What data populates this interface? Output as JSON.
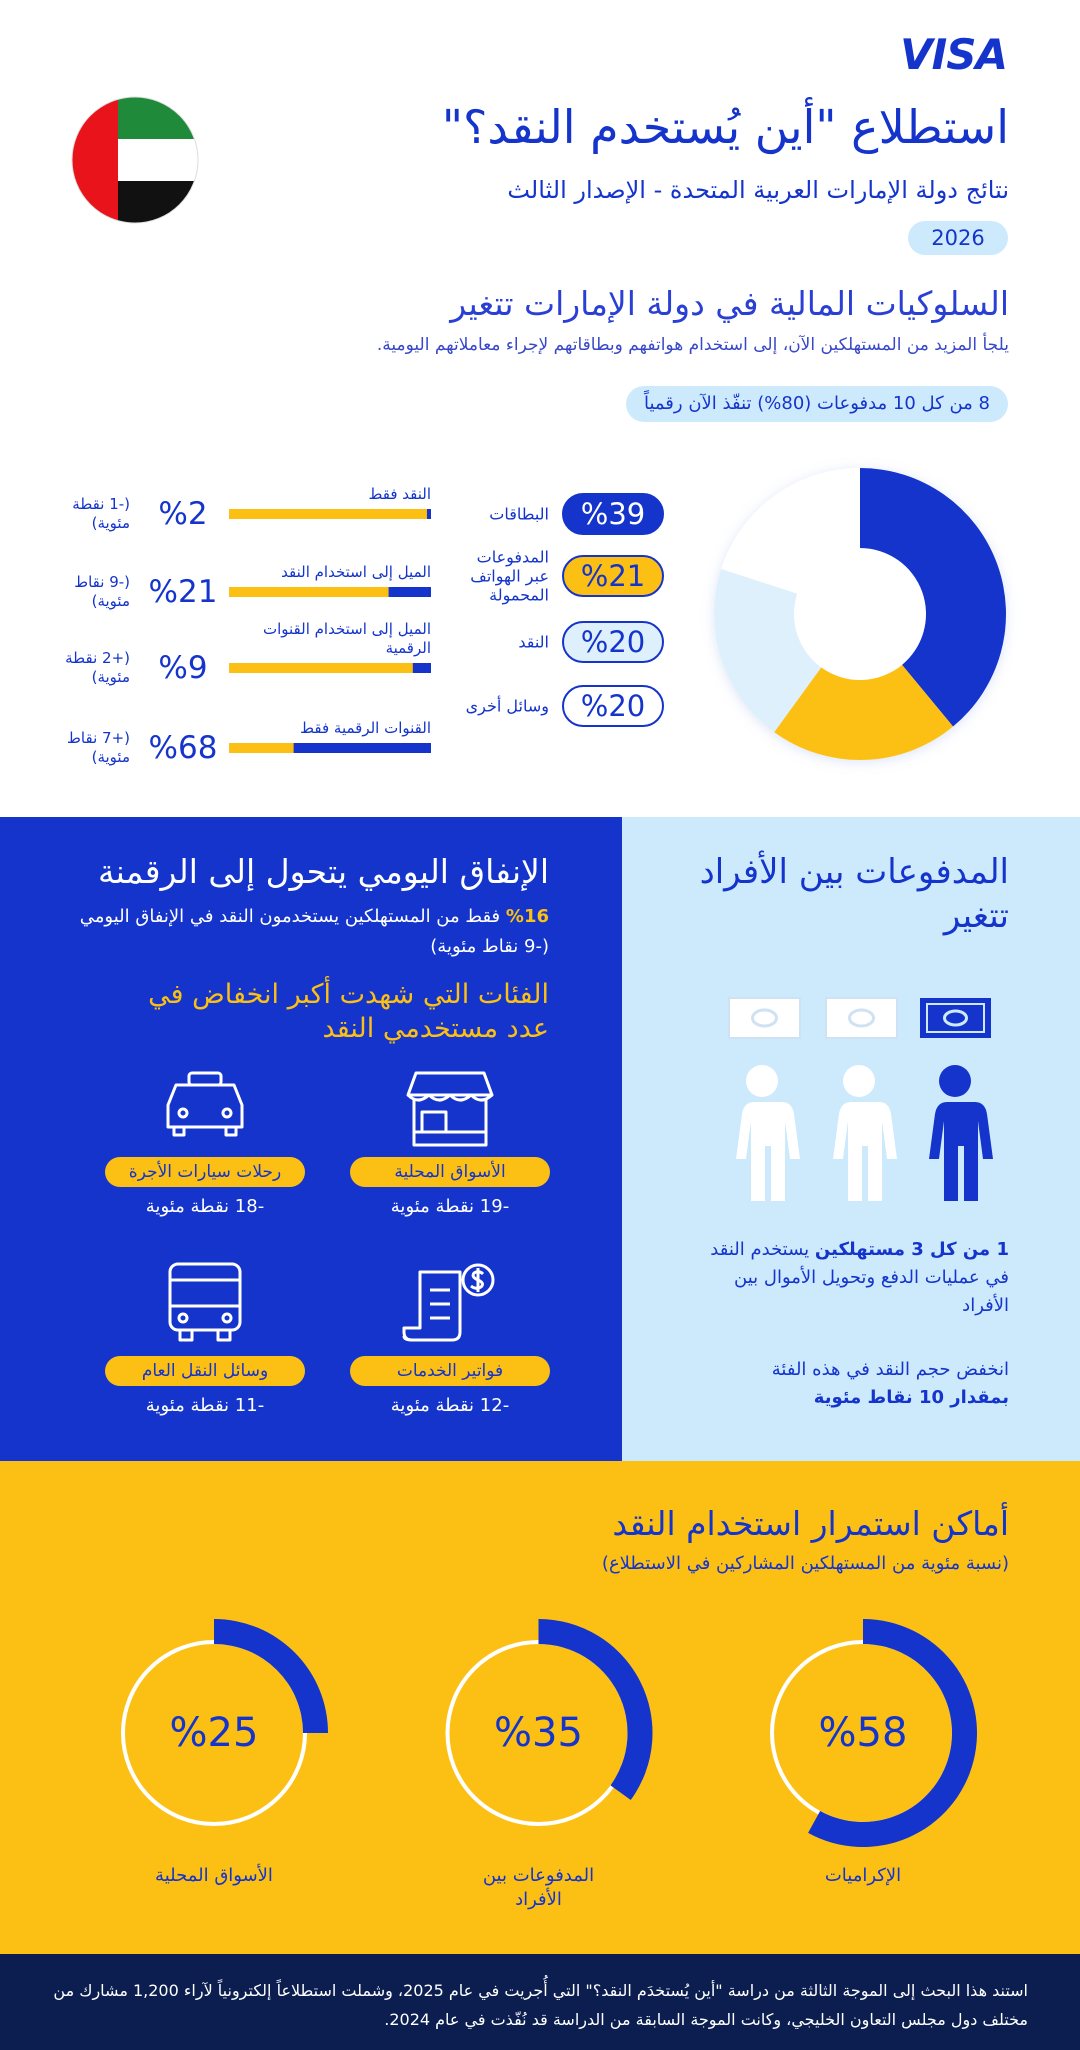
{
  "header": {
    "logo": "VISA",
    "title": "استطلاع \"أين يُستخدم النقد؟\"",
    "subtitle": "نتائج دولة الإمارات العربية المتحدة - الإصدار الثالث",
    "year": "2026"
  },
  "behaviors": {
    "heading": "السلوكيات المالية في دولة الإمارات تتغير",
    "text": "يلجأ المزيد من المستهلكين الآن، إلى استخدام هواتفهم وبطاقاتهم لإجراء معاملاتهم اليومية.",
    "badge": "8 من كل 10 مدفوعات (80%) تنفّذ الآن رقمياً"
  },
  "chart_data": [
    {
      "type": "donut",
      "categories": [
        "البطاقات",
        "المدفوعات عبر الهواتف المحمولة",
        "النقد",
        "وسائل أخرى"
      ],
      "values": [
        39,
        21,
        20,
        20
      ],
      "value_labels": [
        "%39",
        "%21",
        "%20",
        "%20"
      ],
      "colors": [
        "#1434cb",
        "#fcc015",
        "#dff0fd",
        "#ffffff"
      ]
    },
    {
      "type": "bar",
      "categories": [
        "النقد فقط",
        "الميل إلى استخدام النقد",
        "الميل إلى استخدام القنوات الرقمية",
        "القنوات الرقمية فقط"
      ],
      "values": [
        2,
        21,
        9,
        68
      ],
      "value_labels": [
        "%2",
        "%21",
        "%9",
        "%68"
      ],
      "changes": [
        "(-1 نقطة مئوية)",
        "(-9 نقاط مئوية)",
        "(+2 نقطة مئوية)",
        "(+7 نقاط مئوية)"
      ],
      "xlim": [
        0,
        100
      ],
      "color": "#1434cb",
      "track_color": "#fcc015"
    },
    {
      "type": "gauge",
      "title": "أماكن استمرار استخدام النقد",
      "subtitle": "(نسبة مئوية من المستهلكين المشاركين في الاستطلاع)",
      "categories": [
        "الإكراميات",
        "المدفوعات بين الأفراد",
        "الأسواق المحلية"
      ],
      "values": [
        58,
        35,
        25
      ],
      "value_labels": [
        "%58",
        "%35",
        "%25"
      ],
      "xlim": [
        0,
        100
      ],
      "color": "#1434cb"
    }
  ],
  "spending": {
    "heading": "الإنفاق اليومي يتحول إلى الرقمنة",
    "highlight": "%16",
    "text": "فقط من المستهلكين يستخدمون النقد في الإنفاق اليومي (-9 نقاط مئوية)",
    "subheading": "الفئات التي شهدت أكبر انخفاض في عدد مستخدمي النقد",
    "categories": [
      {
        "label": "الأسواق المحلية",
        "change": "-19 نقطة مئوية"
      },
      {
        "label": "رحلات سيارات الأجرة",
        "change": "-18 نقطة مئوية"
      },
      {
        "label": "فواتير الخدمات",
        "change": "-12 نقطة مئوية"
      },
      {
        "label": "وسائل النقل العام",
        "change": "-11 نقطة مئوية"
      }
    ]
  },
  "p2p": {
    "heading": "المدفوعات بين الأفراد تتغير",
    "stat_bold": "1 من كل 3 مستهلكين",
    "stat_text": "يستخدم النقد في عمليات الدفع وتحويل الأموال بين الأفراد",
    "decline_text": "انخفض حجم النقد في هذه الفئة",
    "decline_bold": "بمقدار 10 نقاط مئوية"
  },
  "footer": {
    "text": "استند هذا البحث إلى الموجة الثالثة من دراسة \"أين يُستخدَم النقد؟\" التي أُجريت في عام 2025، وشملت استطلاعاً إلكترونياً لآراء 1,200 مشارك من مختلف دول مجلس التعاون الخليجي، وكانت الموجة السابقة من الدراسة قد نُفّذت في عام 2024."
  }
}
